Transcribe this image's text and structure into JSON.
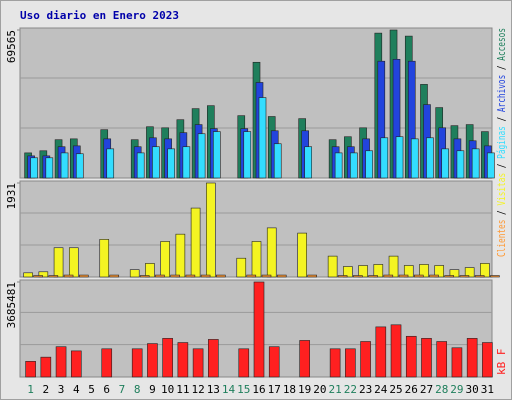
{
  "chart_data": [
    {
      "type": "bar",
      "title": "Uso diario en Enero 2023",
      "ylim": [
        0,
        69565
      ],
      "yticks": [
        69565
      ],
      "series": [
        {
          "name": "Accesos",
          "color": "#1f7f5c",
          "values": [
            11800,
            12800,
            18000,
            18400,
            null,
            22700,
            null,
            18000,
            24100,
            23600,
            27400,
            32600,
            34000,
            null,
            29300,
            54400,
            28900,
            null,
            27900,
            null,
            18000,
            19400,
            23600,
            68100,
            69565,
            66700,
            44000,
            33100,
            24600,
            25100,
            21800
          ]
        },
        {
          "name": "Archivos",
          "color": "#2244dd",
          "values": [
            10400,
            10400,
            14700,
            15100,
            null,
            18400,
            null,
            14700,
            18900,
            18400,
            21300,
            25100,
            23200,
            null,
            23200,
            44900,
            22200,
            null,
            22200,
            null,
            14700,
            14700,
            18400,
            54900,
            55800,
            54900,
            34500,
            23600,
            18400,
            17500,
            15100
          ]
        },
        {
          "name": "Páginas",
          "color": "#33ddff",
          "values": [
            9500,
            9500,
            11800,
            11400,
            null,
            13700,
            null,
            11800,
            14700,
            13700,
            14700,
            20800,
            21800,
            null,
            21800,
            37800,
            16100,
            null,
            14700,
            null,
            11800,
            11800,
            12800,
            18900,
            19400,
            18400,
            18900,
            13700,
            12800,
            13700,
            11800
          ]
        }
      ]
    },
    {
      "type": "bar",
      "ylim": [
        0,
        1931
      ],
      "yticks": [
        1931
      ],
      "series": [
        {
          "name": "Visitas",
          "color": "#f4f422",
          "values": [
            86,
            107,
            601,
            601,
            null,
            773,
            null,
            150,
            279,
            730,
            880,
            1416,
            1931,
            null,
            386,
            730,
            1009,
            null,
            902,
            null,
            429,
            215,
            236,
            258,
            429,
            236,
            258,
            236,
            150,
            193,
            279
          ]
        },
        {
          "name": "Clientes",
          "color": "#ff9933",
          "values": [
            30,
            30,
            40,
            40,
            null,
            40,
            null,
            30,
            40,
            40,
            40,
            40,
            40,
            null,
            40,
            40,
            40,
            null,
            40,
            null,
            30,
            30,
            30,
            40,
            40,
            40,
            40,
            30,
            30,
            30,
            30
          ]
        }
      ]
    },
    {
      "type": "bar",
      "ylim": [
        0,
        3685481
      ],
      "yticks": [
        3685481
      ],
      "categories": [
        "1",
        "2",
        "3",
        "4",
        "5",
        "6",
        "7",
        "8",
        "9",
        "10",
        "11",
        "12",
        "13",
        "14",
        "15",
        "16",
        "17",
        "18",
        "19",
        "20",
        "21",
        "22",
        "23",
        "24",
        "25",
        "26",
        "27",
        "28",
        "29",
        "30",
        "31"
      ],
      "category_colors": [
        "#1f7f5c",
        "#000000",
        "#000000",
        "#000000",
        "#000000",
        "#000000",
        "#1f7f5c",
        "#1f7f5c",
        "#000000",
        "#000000",
        "#000000",
        "#000000",
        "#000000",
        "#1f7f5c",
        "#1f7f5c",
        "#000000",
        "#000000",
        "#000000",
        "#000000",
        "#000000",
        "#1f7f5c",
        "#1f7f5c",
        "#000000",
        "#000000",
        "#000000",
        "#000000",
        "#000000",
        "#1f7f5c",
        "#1f7f5c",
        "#000000",
        "#000000"
      ],
      "series": [
        {
          "name": "kB F",
          "color": "#ff2020",
          "values": [
            607000,
            770000,
            1175000,
            1013000,
            null,
            1094000,
            null,
            1094000,
            1296000,
            1499000,
            1337000,
            1094000,
            1458000,
            null,
            1094000,
            3685481,
            1175000,
            null,
            1418000,
            null,
            1094000,
            1094000,
            1377000,
            1944000,
            2025000,
            1580000,
            1499000,
            1377000,
            1134000,
            1499000,
            1337000
          ]
        }
      ]
    }
  ]
}
